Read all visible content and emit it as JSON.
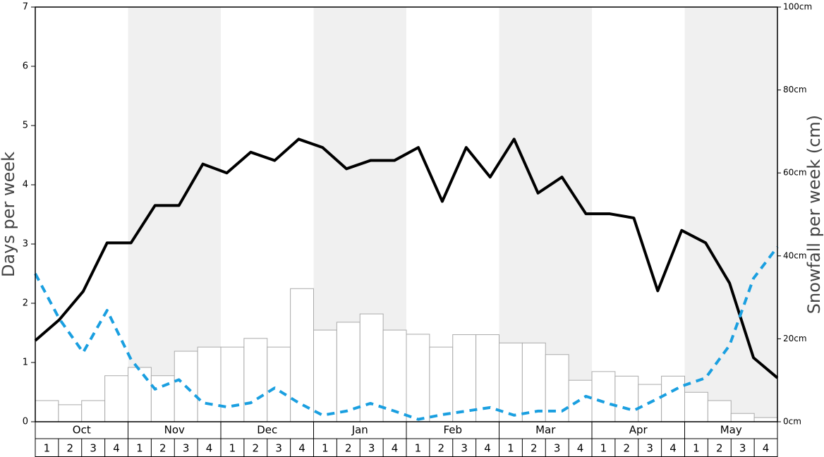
{
  "chart_data": {
    "type": "bar",
    "y_label": "Days per week",
    "y2_label": "Snowfall per week (cm)",
    "months": [
      "Oct",
      "Nov",
      "Dec",
      "Jan",
      "Feb",
      "Mar",
      "Apr",
      "May"
    ],
    "categories": [
      "1",
      "2",
      "3",
      "4",
      "1",
      "2",
      "3",
      "4",
      "1",
      "2",
      "3",
      "4",
      "1",
      "2",
      "3",
      "4",
      "1",
      "2",
      "3",
      "4",
      "1",
      "2",
      "3",
      "4",
      "1",
      "2",
      "3",
      "4",
      "1",
      "2",
      "3",
      "4"
    ],
    "ylim": [
      0,
      7
    ],
    "yticks": [
      0,
      1,
      2,
      3,
      4,
      5,
      6,
      7
    ],
    "y2lim": [
      0,
      100
    ],
    "y2ticks": [
      {
        "value": 0,
        "label": "0cm"
      },
      {
        "value": 20,
        "label": "20cm"
      },
      {
        "value": 40,
        "label": "40cm"
      },
      {
        "value": 60,
        "label": "60cm"
      },
      {
        "value": 80,
        "label": "80cm"
      },
      {
        "value": 100,
        "label": "100cm"
      }
    ],
    "series": [
      {
        "type": "bar",
        "axis": "y2",
        "color": "#ffffff",
        "values": [
          5.1,
          4.1,
          5.1,
          11.1,
          13.1,
          11.1,
          17.0,
          18.0,
          18.0,
          20.1,
          18.0,
          32.1,
          22.1,
          24.0,
          26.0,
          22.1,
          21.1,
          18.0,
          21.0,
          21.0,
          19.0,
          19.0,
          16.2,
          10.0,
          12.1,
          11.0,
          9.0,
          11.0,
          7.1,
          5.1,
          2.0,
          1.0
        ]
      },
      {
        "type": "line",
        "color": "#000000",
        "values": [
          1.37,
          1.72,
          2.2,
          3.02,
          3.02,
          3.65,
          3.65,
          4.35,
          4.2,
          4.55,
          4.41,
          4.77,
          4.63,
          4.27,
          4.41,
          4.41,
          4.63,
          3.72,
          4.63,
          4.13,
          4.77,
          3.86,
          4.13,
          3.51,
          3.51,
          3.44,
          2.21,
          3.23,
          3.02,
          2.34,
          1.08,
          0.74
        ]
      },
      {
        "type": "line",
        "color": "#1a9fe0",
        "dashed": true,
        "values": [
          2.5,
          1.74,
          1.17,
          1.88,
          1.05,
          0.55,
          0.71,
          0.32,
          0.25,
          0.32,
          0.57,
          0.32,
          0.11,
          0.18,
          0.31,
          0.18,
          0.04,
          0.12,
          0.18,
          0.24,
          0.11,
          0.18,
          0.18,
          0.43,
          0.3,
          0.19,
          0.39,
          0.6,
          0.74,
          1.29,
          2.42,
          2.95
        ]
      }
    ]
  }
}
